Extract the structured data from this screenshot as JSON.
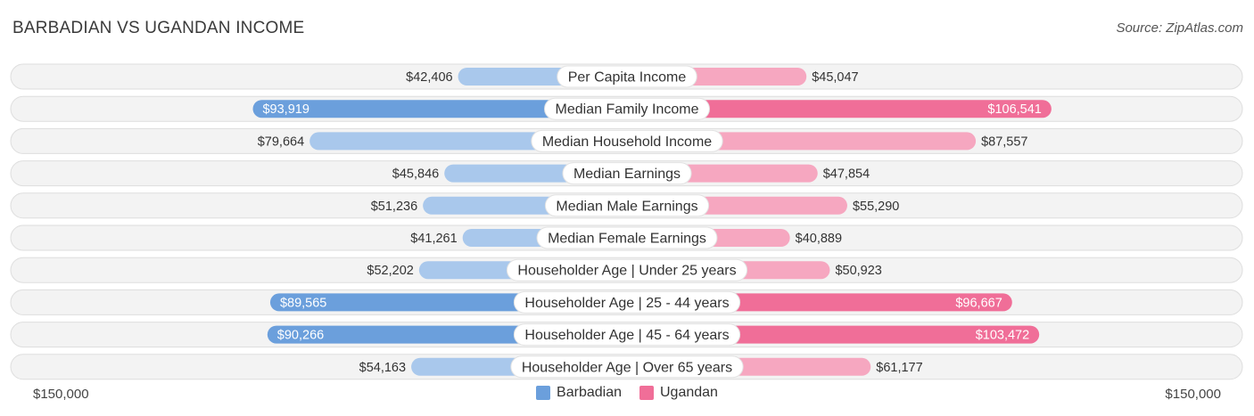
{
  "title": "BARBADIAN VS UGANDAN INCOME",
  "source": "Source: ZipAtlas.com",
  "axis": {
    "left_label": "$150,000",
    "right_label": "$150,000"
  },
  "legend": [
    {
      "name": "Barbadian",
      "color": "#6b9fdc"
    },
    {
      "name": "Ugandan",
      "color": "#f06e98"
    }
  ],
  "chart_data": {
    "type": "bar",
    "orientation": "horizontal-diverging",
    "title": "BARBADIAN VS UGANDAN INCOME",
    "xlim": [
      -150000,
      150000
    ],
    "categories": [
      "Per Capita Income",
      "Median Family Income",
      "Median Household Income",
      "Median Earnings",
      "Median Male Earnings",
      "Median Female Earnings",
      "Householder Age | Under 25 years",
      "Householder Age | 25 - 44 years",
      "Householder Age | 45 - 64 years",
      "Householder Age | Over 65 years"
    ],
    "series": [
      {
        "name": "Barbadian",
        "side": "left",
        "color_strong": "#6b9fdc",
        "color_light": "#a9c8ec",
        "values": [
          42406,
          93919,
          79664,
          45846,
          51236,
          41261,
          52202,
          89565,
          90266,
          54163
        ],
        "labels": [
          "$42,406",
          "$93,919",
          "$79,664",
          "$45,846",
          "$51,236",
          "$41,261",
          "$52,202",
          "$89,565",
          "$90,266",
          "$54,163"
        ]
      },
      {
        "name": "Ugandan",
        "side": "right",
        "color_strong": "#f06e98",
        "color_light": "#f6a7c0",
        "values": [
          45047,
          106541,
          87557,
          47854,
          55290,
          40889,
          50923,
          96667,
          103472,
          61177
        ],
        "labels": [
          "$45,047",
          "$106,541",
          "$87,557",
          "$47,854",
          "$55,290",
          "$40,889",
          "$50,923",
          "$96,667",
          "$103,472",
          "$61,177"
        ]
      }
    ],
    "highlighted_rows": [
      1,
      7,
      8
    ],
    "legend_position": "bottom-center"
  }
}
